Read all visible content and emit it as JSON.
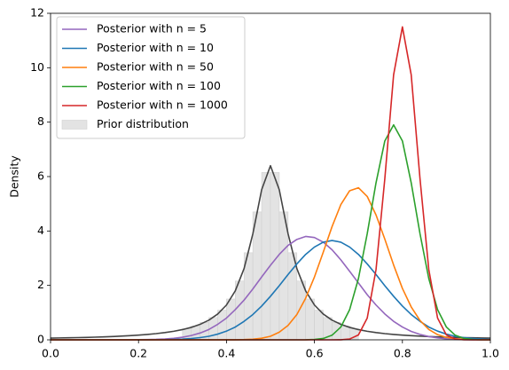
{
  "chart_data": {
    "type": "line",
    "ylabel": "Density",
    "x": [
      0,
      0.02,
      0.04,
      0.06,
      0.08,
      0.1,
      0.12,
      0.14,
      0.16,
      0.18,
      0.2,
      0.22,
      0.24,
      0.26,
      0.28,
      0.3,
      0.32,
      0.34,
      0.36,
      0.38,
      0.4,
      0.42,
      0.44,
      0.46,
      0.48,
      0.5,
      0.52,
      0.54,
      0.56,
      0.58,
      0.6,
      0.62,
      0.64,
      0.66,
      0.68,
      0.7,
      0.72,
      0.74,
      0.76,
      0.78,
      0.8,
      0.82,
      0.84,
      0.86,
      0.88,
      0.9,
      0.92,
      0.94,
      0.96,
      0.98,
      1
    ],
    "series": [
      {
        "name": "Posterior with n = 5",
        "color": "#9467bd",
        "values": [
          0,
          0,
          0,
          0,
          0,
          0,
          0,
          0,
          0,
          0,
          0.005,
          0.009,
          0.017,
          0.032,
          0.056,
          0.096,
          0.158,
          0.25,
          0.38,
          0.57,
          0.8,
          1.11,
          1.46,
          1.87,
          2.31,
          2.74,
          3.14,
          3.47,
          3.69,
          3.8,
          3.76,
          3.59,
          3.31,
          2.94,
          2.52,
          2.09,
          1.66,
          1.28,
          0.95,
          0.68,
          0.47,
          0.31,
          0.2,
          0.12,
          0.07,
          0.04,
          0.02,
          0.01,
          0,
          0,
          0
        ]
      },
      {
        "name": "Posterior with n = 10",
        "color": "#1f77b4",
        "values": [
          0,
          0,
          0,
          0,
          0,
          0,
          0,
          0,
          0,
          0,
          0.001,
          0.002,
          0.004,
          0.008,
          0.016,
          0.028,
          0.049,
          0.082,
          0.13,
          0.21,
          0.32,
          0.47,
          0.68,
          0.93,
          1.24,
          1.6,
          1.99,
          2.4,
          2.79,
          3.14,
          3.41,
          3.59,
          3.65,
          3.59,
          3.41,
          3.14,
          2.79,
          2.4,
          1.99,
          1.6,
          1.24,
          0.93,
          0.68,
          0.47,
          0.32,
          0.21,
          0.13,
          0.08,
          0.05,
          0.03,
          0.016
        ]
      },
      {
        "name": "Posterior with n = 50",
        "color": "#ff7f0e",
        "values": [
          0,
          0,
          0,
          0,
          0,
          0,
          0,
          0,
          0,
          0,
          0,
          0,
          0,
          0,
          0,
          0,
          0,
          0,
          0,
          0,
          0.001,
          0.003,
          0.009,
          0.024,
          0.06,
          0.13,
          0.28,
          0.53,
          0.93,
          1.53,
          2.31,
          3.22,
          4.16,
          4.97,
          5.48,
          5.59,
          5.27,
          4.59,
          3.7,
          2.75,
          1.89,
          1.21,
          0.71,
          0.38,
          0.19,
          0.09,
          0.04,
          0.015,
          0.005,
          0.001,
          0
        ]
      },
      {
        "name": "Posterior with n = 100",
        "color": "#2ca02c",
        "values": [
          0,
          0,
          0,
          0,
          0,
          0,
          0,
          0,
          0,
          0,
          0,
          0,
          0,
          0,
          0,
          0,
          0,
          0,
          0,
          0,
          0,
          0,
          0,
          0,
          0,
          0,
          0,
          0,
          0,
          0.003,
          0.014,
          0.05,
          0.17,
          0.47,
          1.11,
          2.25,
          3.9,
          5.77,
          7.31,
          7.9,
          7.31,
          5.77,
          3.9,
          2.25,
          1.11,
          0.47,
          0.17,
          0.05,
          0.014,
          0.003,
          0
        ]
      },
      {
        "name": "Posterior with n = 1000",
        "color": "#d62728",
        "values": [
          0,
          0,
          0,
          0,
          0,
          0,
          0,
          0,
          0,
          0,
          0,
          0,
          0,
          0,
          0,
          0,
          0,
          0,
          0,
          0,
          0,
          0,
          0,
          0,
          0,
          0,
          0,
          0,
          0,
          0,
          0,
          0,
          0,
          0.003,
          0.03,
          0.18,
          0.8,
          2.58,
          5.92,
          9.74,
          11.5,
          9.74,
          5.92,
          2.58,
          0.8,
          0.18,
          0.03,
          0.003,
          0,
          0,
          0
        ]
      }
    ],
    "prior_density": {
      "color": "#444444",
      "values": [
        0.063,
        0.069,
        0.075,
        0.082,
        0.089,
        0.098,
        0.109,
        0.121,
        0.135,
        0.153,
        0.173,
        0.198,
        0.228,
        0.266,
        0.314,
        0.376,
        0.458,
        0.569,
        0.724,
        0.947,
        1.28,
        1.8,
        2.62,
        3.9,
        5.52,
        6.4,
        5.52,
        3.9,
        2.62,
        1.8,
        1.28,
        0.947,
        0.724,
        0.569,
        0.458,
        0.376,
        0.314,
        0.266,
        0.228,
        0.198,
        0.173,
        0.153,
        0.135,
        0.121,
        0.109,
        0.098,
        0.089,
        0.082,
        0.075,
        0.069,
        0.063
      ]
    },
    "histogram": {
      "name": "Prior distribution",
      "color": "#e3e3e3",
      "bins": [
        0.3,
        0.32,
        0.34,
        0.36,
        0.38,
        0.4,
        0.42,
        0.44,
        0.46,
        0.48,
        0.5,
        0.52,
        0.54,
        0.56,
        0.58,
        0.6,
        0.62,
        0.64,
        0.66,
        0.68,
        0.7
      ],
      "counts": [
        0.41,
        0.51,
        0.64,
        0.82,
        1.09,
        1.5,
        2.16,
        3.2,
        4.7,
        6.15,
        6.15,
        4.7,
        3.2,
        2.16,
        1.5,
        1.09,
        0.82,
        0.64,
        0.51,
        0.41
      ]
    },
    "xlim": [
      0,
      1
    ],
    "ylim": [
      0,
      12
    ],
    "xticks": [
      {
        "value": 0,
        "label": "0.0"
      },
      0.2,
      0.4,
      0.6,
      0.8,
      {
        "value": 1,
        "label": "1.0"
      }
    ],
    "yticks": [
      0,
      2,
      4,
      6,
      8,
      10,
      12
    ],
    "legend": "upper left"
  }
}
